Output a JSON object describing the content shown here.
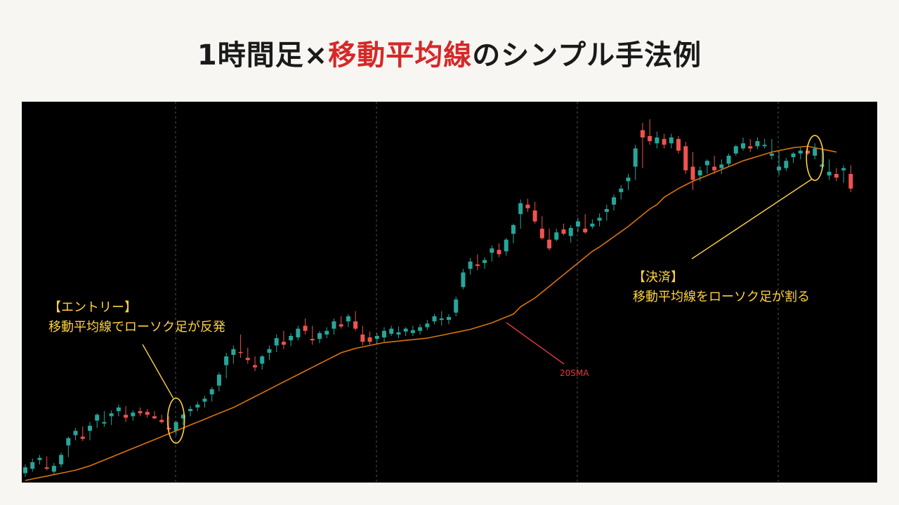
{
  "title": {
    "part1": "1時間足×",
    "part2": "移動平均線",
    "part3": "のシンプル手法例"
  },
  "annotations": {
    "entry_heading": "【エントリー】",
    "entry_text": "移動平均線でローソク足が反発",
    "exit_heading": "【決済】",
    "exit_text": "移動平均線をローソク足が割る",
    "sma_label": "20SMA"
  },
  "colors": {
    "up": "#26a69a",
    "down": "#ef5350",
    "sma": "#d9730d",
    "annotation": "#ffd23f",
    "sma_pointer": "#e23a3a",
    "background": "#000000"
  },
  "chart_data": {
    "type": "candlestick",
    "series": [
      {
        "name": "20SMA",
        "type": "line"
      }
    ],
    "candles": [
      [
        0,
        10,
        22,
        5,
        18
      ],
      [
        18,
        16,
        30,
        12,
        25
      ],
      [
        25,
        28,
        35,
        22,
        31
      ],
      [
        31,
        18,
        33,
        14,
        16
      ],
      [
        16,
        12,
        24,
        8,
        20
      ],
      [
        20,
        22,
        38,
        18,
        35
      ],
      [
        35,
        48,
        60,
        32,
        58
      ],
      [
        58,
        62,
        72,
        55,
        68
      ],
      [
        68,
        60,
        74,
        54,
        57
      ],
      [
        57,
        68,
        80,
        55,
        75
      ],
      [
        75,
        82,
        92,
        72,
        90
      ],
      [
        90,
        78,
        95,
        74,
        80
      ],
      [
        80,
        88,
        96,
        76,
        92
      ],
      [
        92,
        95,
        104,
        88,
        100
      ],
      [
        100,
        90,
        102,
        80,
        86
      ],
      [
        86,
        88,
        96,
        82,
        93
      ],
      [
        93,
        95,
        100,
        88,
        92
      ],
      [
        92,
        94,
        98,
        86,
        90
      ],
      [
        90,
        88,
        95,
        84,
        85
      ],
      [
        85,
        83,
        90,
        78,
        80
      ],
      [
        80,
        72,
        88,
        65,
        70
      ],
      [
        70,
        68,
        82,
        62,
        80
      ],
      [
        80,
        85,
        92,
        76,
        90
      ],
      [
        90,
        95,
        102,
        88,
        98
      ],
      [
        98,
        100,
        108,
        95,
        104
      ],
      [
        104,
        108,
        116,
        100,
        112
      ],
      [
        112,
        118,
        128,
        108,
        125
      ],
      [
        125,
        130,
        148,
        122,
        145
      ],
      [
        145,
        158,
        175,
        140,
        170
      ],
      [
        170,
        172,
        185,
        160,
        180
      ],
      [
        180,
        176,
        200,
        168,
        175
      ],
      [
        175,
        168,
        182,
        160,
        165
      ],
      [
        165,
        158,
        170,
        150,
        155
      ],
      [
        155,
        160,
        172,
        152,
        170
      ],
      [
        170,
        175,
        185,
        165,
        180
      ],
      [
        180,
        185,
        200,
        176,
        195
      ],
      [
        195,
        190,
        205,
        180,
        186
      ],
      [
        186,
        192,
        202,
        184,
        198
      ],
      [
        198,
        196,
        212,
        192,
        208
      ],
      [
        208,
        212,
        222,
        200,
        205
      ],
      [
        205,
        194,
        212,
        186,
        192
      ],
      [
        192,
        194,
        205,
        188,
        202
      ],
      [
        202,
        200,
        210,
        195,
        205
      ],
      [
        205,
        208,
        222,
        200,
        218
      ],
      [
        218,
        214,
        225,
        208,
        211
      ],
      [
        211,
        218,
        228,
        210,
        225
      ],
      [
        225,
        218,
        232,
        205,
        208
      ],
      [
        208,
        200,
        212,
        185,
        190
      ],
      [
        190,
        196,
        204,
        186,
        190
      ],
      [
        190,
        194,
        202,
        186,
        198
      ],
      [
        198,
        196,
        210,
        190,
        205
      ],
      [
        205,
        201,
        212,
        198,
        208
      ],
      [
        208,
        200,
        211,
        195,
        203
      ],
      [
        203,
        204,
        210,
        198,
        208
      ],
      [
        208,
        202,
        212,
        198,
        206
      ],
      [
        206,
        205,
        214,
        200,
        210
      ],
      [
        210,
        210,
        220,
        206,
        215
      ],
      [
        215,
        218,
        228,
        214,
        225
      ],
      [
        225,
        220,
        232,
        212,
        222
      ],
      [
        222,
        220,
        228,
        214,
        224
      ],
      [
        224,
        230,
        252,
        225,
        248
      ],
      [
        248,
        265,
        290,
        262,
        285
      ],
      [
        285,
        290,
        305,
        282,
        300
      ],
      [
        300,
        296,
        310,
        288,
        294
      ],
      [
        294,
        298,
        306,
        290,
        302
      ],
      [
        302,
        312,
        322,
        300,
        318
      ],
      [
        318,
        316,
        325,
        306,
        310
      ],
      [
        310,
        314,
        332,
        308,
        330
      ],
      [
        330,
        338,
        352,
        325,
        350
      ],
      [
        350,
        365,
        385,
        345,
        380
      ],
      [
        380,
        378,
        386,
        368,
        373
      ],
      [
        373,
        370,
        382,
        352,
        355
      ],
      [
        355,
        345,
        362,
        330,
        332
      ],
      [
        332,
        330,
        345,
        315,
        318
      ],
      [
        318,
        330,
        345,
        328,
        340
      ],
      [
        340,
        344,
        352,
        336,
        338
      ],
      [
        338,
        335,
        350,
        326,
        346
      ],
      [
        346,
        348,
        360,
        340,
        355
      ],
      [
        355,
        345,
        365,
        338,
        340
      ],
      [
        340,
        348,
        358,
        345,
        352
      ],
      [
        352,
        356,
        366,
        348,
        360
      ],
      [
        360,
        368,
        378,
        356,
        372
      ],
      [
        372,
        378,
        392,
        370,
        388
      ],
      [
        388,
        395,
        405,
        385,
        400
      ],
      [
        400,
        410,
        420,
        398,
        415
      ],
      [
        415,
        430,
        460,
        412,
        455
      ],
      [
        455,
        480,
        490,
        428,
        470
      ],
      [
        470,
        472,
        495,
        460,
        465
      ],
      [
        465,
        462,
        478,
        455,
        470
      ],
      [
        470,
        468,
        475,
        455,
        460
      ],
      [
        460,
        462,
        475,
        455,
        470
      ],
      [
        470,
        468,
        472,
        448,
        452
      ],
      [
        452,
        458,
        464,
        420,
        425
      ],
      [
        425,
        430,
        450,
        398,
        412
      ],
      [
        412,
        418,
        430,
        410,
        425
      ],
      [
        425,
        432,
        440,
        420,
        438
      ],
      [
        438,
        430,
        445,
        420,
        425
      ],
      [
        425,
        428,
        440,
        420,
        433
      ],
      [
        433,
        434,
        448,
        430,
        445
      ],
      [
        445,
        448,
        460,
        445,
        458
      ],
      [
        458,
        455,
        470,
        452,
        462
      ],
      [
        462,
        458,
        468,
        450,
        455
      ],
      [
        455,
        458,
        470,
        454,
        465
      ],
      [
        465,
        458,
        468,
        455,
        460
      ],
      [
        460,
        445,
        468,
        440,
        448
      ],
      [
        448,
        425,
        452,
        418,
        430
      ],
      [
        430,
        428,
        442,
        424,
        438
      ],
      [
        438,
        443,
        450,
        435,
        448
      ],
      [
        448,
        448,
        456,
        440,
        452
      ],
      [
        452,
        452,
        455,
        446,
        448
      ],
      [
        448,
        445,
        462,
        440,
        455
      ],
      [
        455,
        430,
        457,
        425,
        433
      ],
      [
        433,
        418,
        440,
        412,
        423
      ],
      [
        423,
        420,
        428,
        410,
        415
      ],
      [
        415,
        425,
        432,
        408,
        428
      ],
      [
        428,
        420,
        432,
        395,
        400
      ]
    ],
    "sma": [
      0,
      2,
      4,
      6,
      8,
      10,
      12,
      14,
      17,
      20,
      24,
      28,
      32,
      36,
      40,
      44,
      48,
      52,
      56,
      60,
      64,
      68,
      72,
      76,
      80,
      84,
      88,
      92,
      96,
      100,
      105,
      110,
      115,
      120,
      125,
      130,
      135,
      140,
      145,
      150,
      155,
      160,
      165,
      170,
      175,
      178,
      181,
      183,
      185,
      187,
      189,
      190,
      191,
      192,
      193,
      194,
      195,
      197,
      199,
      201,
      203,
      205,
      207,
      210,
      213,
      216,
      220,
      224,
      228,
      238,
      244,
      250,
      258,
      266,
      274,
      282,
      290,
      298,
      306,
      314,
      320,
      327,
      334,
      341,
      348,
      356,
      364,
      372,
      378,
      388,
      394,
      400,
      405,
      410,
      414,
      418,
      422,
      426,
      430,
      434,
      438,
      441,
      444,
      447,
      450,
      452,
      454,
      456,
      457,
      458,
      456,
      454,
      452,
      450
    ]
  }
}
